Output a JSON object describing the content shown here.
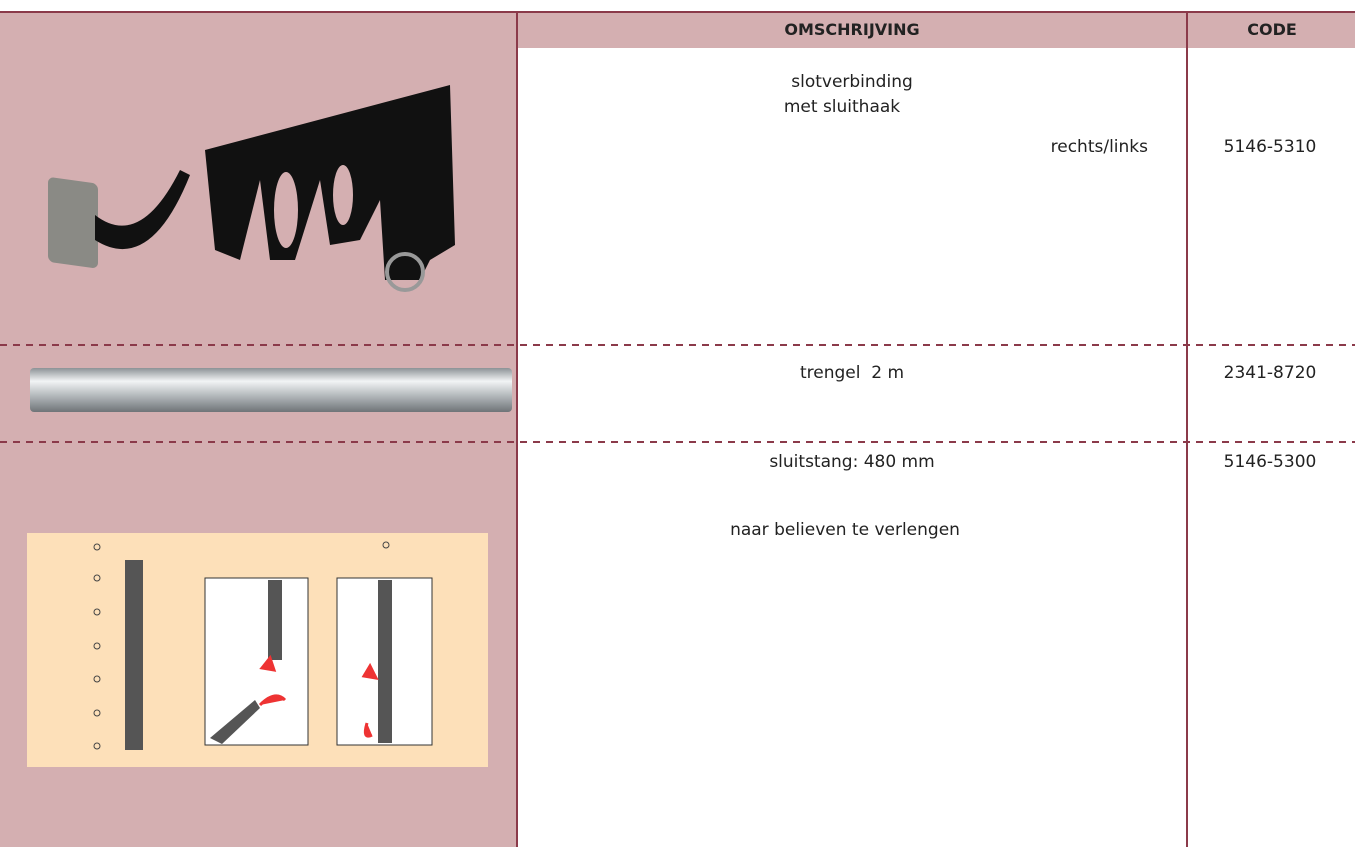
{
  "table": {
    "header": [
      "OMSCHRIJVING",
      "CODE"
    ],
    "rows": [
      {
        "description": [
          "slotverbinding",
          "met sluithaak",
          "rechts/links"
        ],
        "code": "5146-5310"
      },
      {
        "description": [
          "trengel  2 m"
        ],
        "code": "2341-8720"
      },
      {
        "description": [
          "sluitstang: 480 mm",
          "naar believen te verlengen"
        ],
        "code": "5146-5300"
      }
    ]
  }
}
